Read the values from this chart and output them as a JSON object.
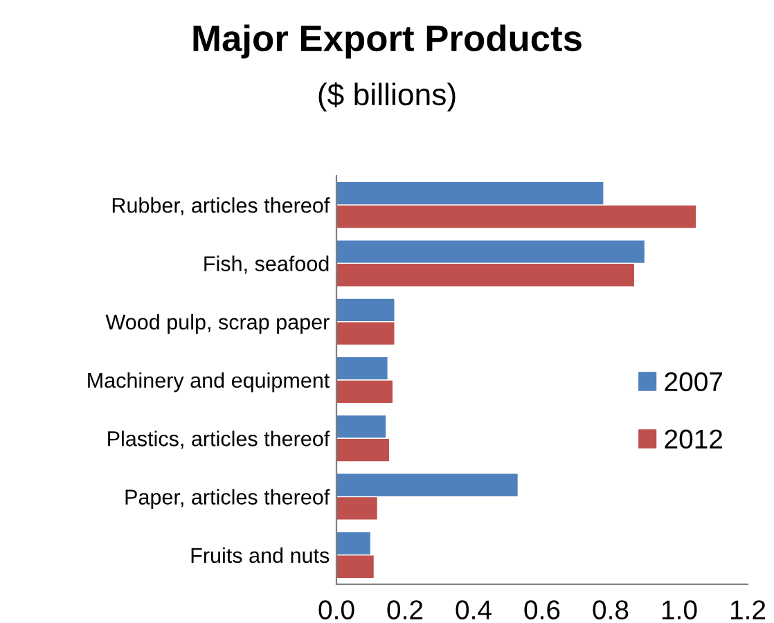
{
  "chart_data": {
    "type": "bar",
    "orientation": "horizontal",
    "title": "Major Export Products",
    "subtitle": "($ billions)",
    "categories": [
      "Rubber, articles thereof",
      "Fish, seafood",
      "Wood pulp, scrap paper",
      "Machinery and equipment",
      "Plastics, articles thereof",
      "Paper, articles thereof",
      "Fruits and nuts"
    ],
    "series": [
      {
        "name": "2007",
        "color": "#4f81bd",
        "values": [
          0.78,
          0.9,
          0.17,
          0.15,
          0.145,
          0.53,
          0.1
        ]
      },
      {
        "name": "2012",
        "color": "#c0504d",
        "values": [
          1.05,
          0.87,
          0.17,
          0.165,
          0.155,
          0.12,
          0.11
        ]
      }
    ],
    "xlim": [
      0,
      1.2
    ],
    "xticks": [
      {
        "value": 0,
        "label": "0.0"
      },
      {
        "value": 0.2,
        "label": "0.2"
      },
      {
        "value": 0.4,
        "label": "0.4"
      },
      {
        "value": 0.6,
        "label": "0.6"
      },
      {
        "value": 0.8,
        "label": "0.8"
      },
      {
        "value": 1.0,
        "label": "1.0"
      },
      {
        "value": 1.2,
        "label": "1.2"
      }
    ],
    "grid": false,
    "legend": "right"
  }
}
